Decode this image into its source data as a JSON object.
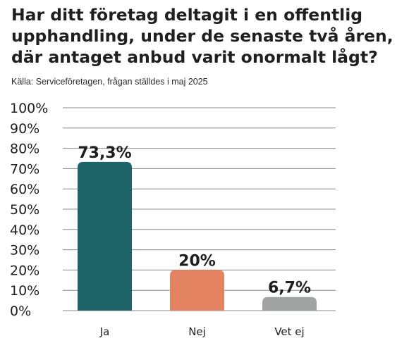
{
  "chart_data": {
    "type": "bar",
    "title": "Har ditt företag deltagit i en offentlig upphandling, under de senaste två åren, där antaget anbud varit onormalt lågt?",
    "subtitle": "Källa: Serviceföretagen, frågan ställdes i maj 2025",
    "categories": [
      "Ja",
      "Nej",
      "Vet ej"
    ],
    "values": [
      73.3,
      20,
      6.7
    ],
    "data_labels": [
      "73,3%",
      "20%",
      "6,7%"
    ],
    "colors": [
      "#1f6468",
      "#e48462",
      "#a1a3a2"
    ],
    "ylim": [
      0,
      100
    ],
    "yticks": [
      "0%",
      "10%",
      "20%",
      "30%",
      "40%",
      "50%",
      "60%",
      "70%",
      "80%",
      "90%",
      "100%"
    ],
    "grid": true,
    "xlabel": "",
    "ylabel": ""
  }
}
